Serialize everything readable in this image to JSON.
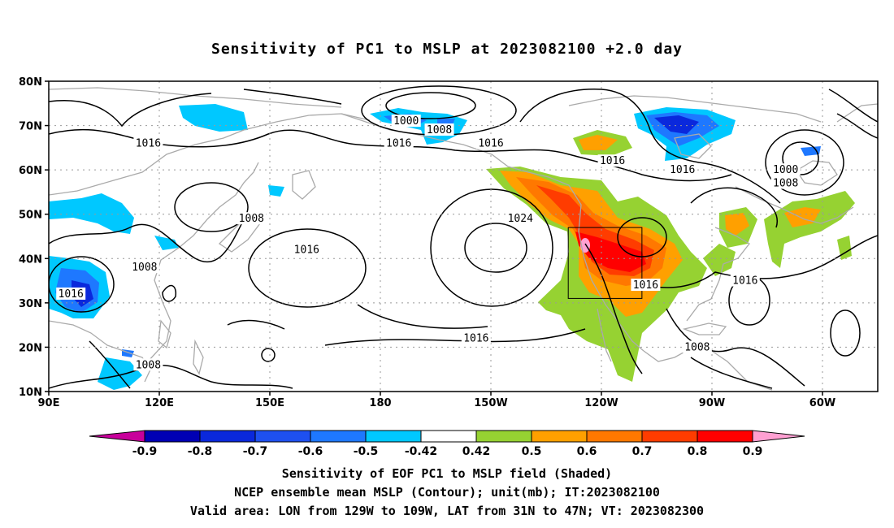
{
  "title": "Sensitivity of PC1 to MSLP at 2023082100 +2.0 day",
  "lat_labels": [
    "80N",
    "70N",
    "60N",
    "50N",
    "40N",
    "30N",
    "20N",
    "10N"
  ],
  "lon_labels": [
    "90E",
    "120E",
    "150E",
    "180",
    "150W",
    "120W",
    "90W",
    "60W"
  ],
  "contour_labels": [
    {
      "text": "1000",
      "lon": -173,
      "lat": 71
    },
    {
      "text": "1008",
      "lon": -164,
      "lat": 69
    },
    {
      "text": "1016",
      "lon": 117,
      "lat": 66
    },
    {
      "text": "1016",
      "lon": -175,
      "lat": 66
    },
    {
      "text": "1016",
      "lon": -150,
      "lat": 66
    },
    {
      "text": "1016",
      "lon": -117,
      "lat": 62
    },
    {
      "text": "1016",
      "lon": -98,
      "lat": 60
    },
    {
      "text": "1000",
      "lon": -70,
      "lat": 60
    },
    {
      "text": "1008",
      "lon": -70,
      "lat": 57
    },
    {
      "text": "1024",
      "lon": -142,
      "lat": 49
    },
    {
      "text": "1008",
      "lon": 145,
      "lat": 49
    },
    {
      "text": "1016",
      "lon": 160,
      "lat": 42
    },
    {
      "text": "1008",
      "lon": 116,
      "lat": 38
    },
    {
      "text": "1016",
      "lon": 96,
      "lat": 32
    },
    {
      "text": "1016",
      "lon": -108,
      "lat": 34
    },
    {
      "text": "1016",
      "lon": -81,
      "lat": 35
    },
    {
      "text": "1016",
      "lon": -154,
      "lat": 22
    },
    {
      "text": "1008",
      "lon": -94,
      "lat": 20
    },
    {
      "text": "1008",
      "lon": 117,
      "lat": 16
    }
  ],
  "valid_area": {
    "lon_min": -129,
    "lon_max": -109,
    "lat_min": 31,
    "lat_max": 47
  },
  "colorbar": {
    "labels": [
      "-0.9",
      "-0.8",
      "-0.7",
      "-0.6",
      "-0.5",
      "-0.42",
      "0.42",
      "0.5",
      "0.6",
      "0.7",
      "0.8",
      "0.9"
    ],
    "colors": [
      "#0000b4",
      "#0a28dc",
      "#1e50f0",
      "#1e78ff",
      "#00c8ff",
      "#ffffff",
      "#96d232",
      "#ffa000",
      "#ff7800",
      "#ff3c00",
      "#ff0000"
    ],
    "under_color": "#c8009b",
    "over_color": "#ffa0d2"
  },
  "captions": [
    "Sensitivity of EOF PC1 to MSLP field (Shaded)",
    "NCEP ensemble mean MSLP (Contour); unit(mb); IT:2023082100",
    "Valid area: LON from 129W to 109W, LAT from 31N to 47N; VT: 2023082300"
  ]
}
